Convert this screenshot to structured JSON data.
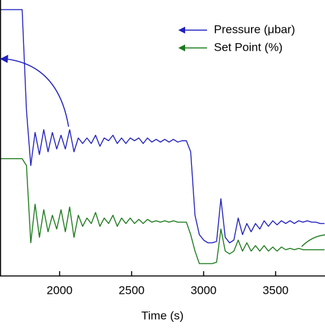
{
  "chart_data": {
    "type": "line",
    "x_label": "Time (s)",
    "x": [
      1590,
      1620,
      1650,
      1680,
      1710,
      1740,
      1770,
      1800,
      1830,
      1860,
      1890,
      1920,
      1950,
      1980,
      2010,
      2040,
      2070,
      2100,
      2130,
      2160,
      2190,
      2220,
      2250,
      2280,
      2310,
      2340,
      2370,
      2400,
      2430,
      2460,
      2490,
      2520,
      2550,
      2580,
      2610,
      2640,
      2670,
      2700,
      2730,
      2760,
      2790,
      2820,
      2850,
      2880,
      2910,
      2940,
      2970,
      3000,
      3030,
      3060,
      3090,
      3120,
      3150,
      3180,
      3210,
      3240,
      3270,
      3300,
      3330,
      3360,
      3390,
      3420,
      3450,
      3480,
      3510,
      3540,
      3570,
      3600,
      3630,
      3660,
      3690,
      3720,
      3750,
      3780,
      3810,
      3840
    ],
    "series": [
      {
        "name": "Pressure (μbar)",
        "color": "#1f1fbf",
        "values": [
          96.5,
          96.5,
          96.5,
          96.5,
          96.5,
          96.5,
          60,
          40,
          52,
          44,
          53,
          45,
          52,
          46,
          51,
          46,
          53,
          45,
          50,
          48,
          50,
          48,
          51,
          47,
          50,
          49,
          51,
          48,
          50,
          48,
          50,
          49,
          50,
          48,
          50,
          48.5,
          49.5,
          48.5,
          49.5,
          48.5,
          49.5,
          48.5,
          49,
          49,
          45,
          22,
          15,
          13,
          12,
          12,
          12.5,
          28,
          14,
          12,
          13,
          21,
          15,
          19,
          16,
          19,
          17,
          20,
          18,
          20,
          18.5,
          20,
          19,
          20,
          19,
          20,
          19.5,
          20,
          19.5,
          19.5,
          19,
          19
        ]
      },
      {
        "name": "Set Point (%)",
        "color": "#1a7a1a",
        "values": [
          42.5,
          42.5,
          42.5,
          42.5,
          42.5,
          42.5,
          40,
          12,
          26,
          14,
          24,
          16,
          22,
          17,
          24,
          16,
          25,
          14,
          22,
          18,
          21,
          19,
          23,
          18,
          21,
          19,
          22,
          18,
          21,
          19,
          21,
          19,
          20.5,
          19,
          20.5,
          19.5,
          20,
          19.5,
          20,
          19.5,
          20,
          19.5,
          19.5,
          19.5,
          15,
          9,
          4.5,
          4.5,
          4.5,
          4.5,
          5,
          17,
          9,
          8,
          9,
          13,
          9,
          12,
          9,
          11,
          9,
          11,
          9,
          10.5,
          9,
          10.5,
          9.5,
          10,
          9.5,
          10,
          9.5,
          9.5,
          9.5,
          9.5,
          9.5,
          9.5
        ]
      }
    ],
    "xlim": [
      1586,
      3843
    ],
    "xticks": [
      2000,
      2500,
      3000,
      3500
    ],
    "ylim": [
      0,
      100
    ]
  }
}
